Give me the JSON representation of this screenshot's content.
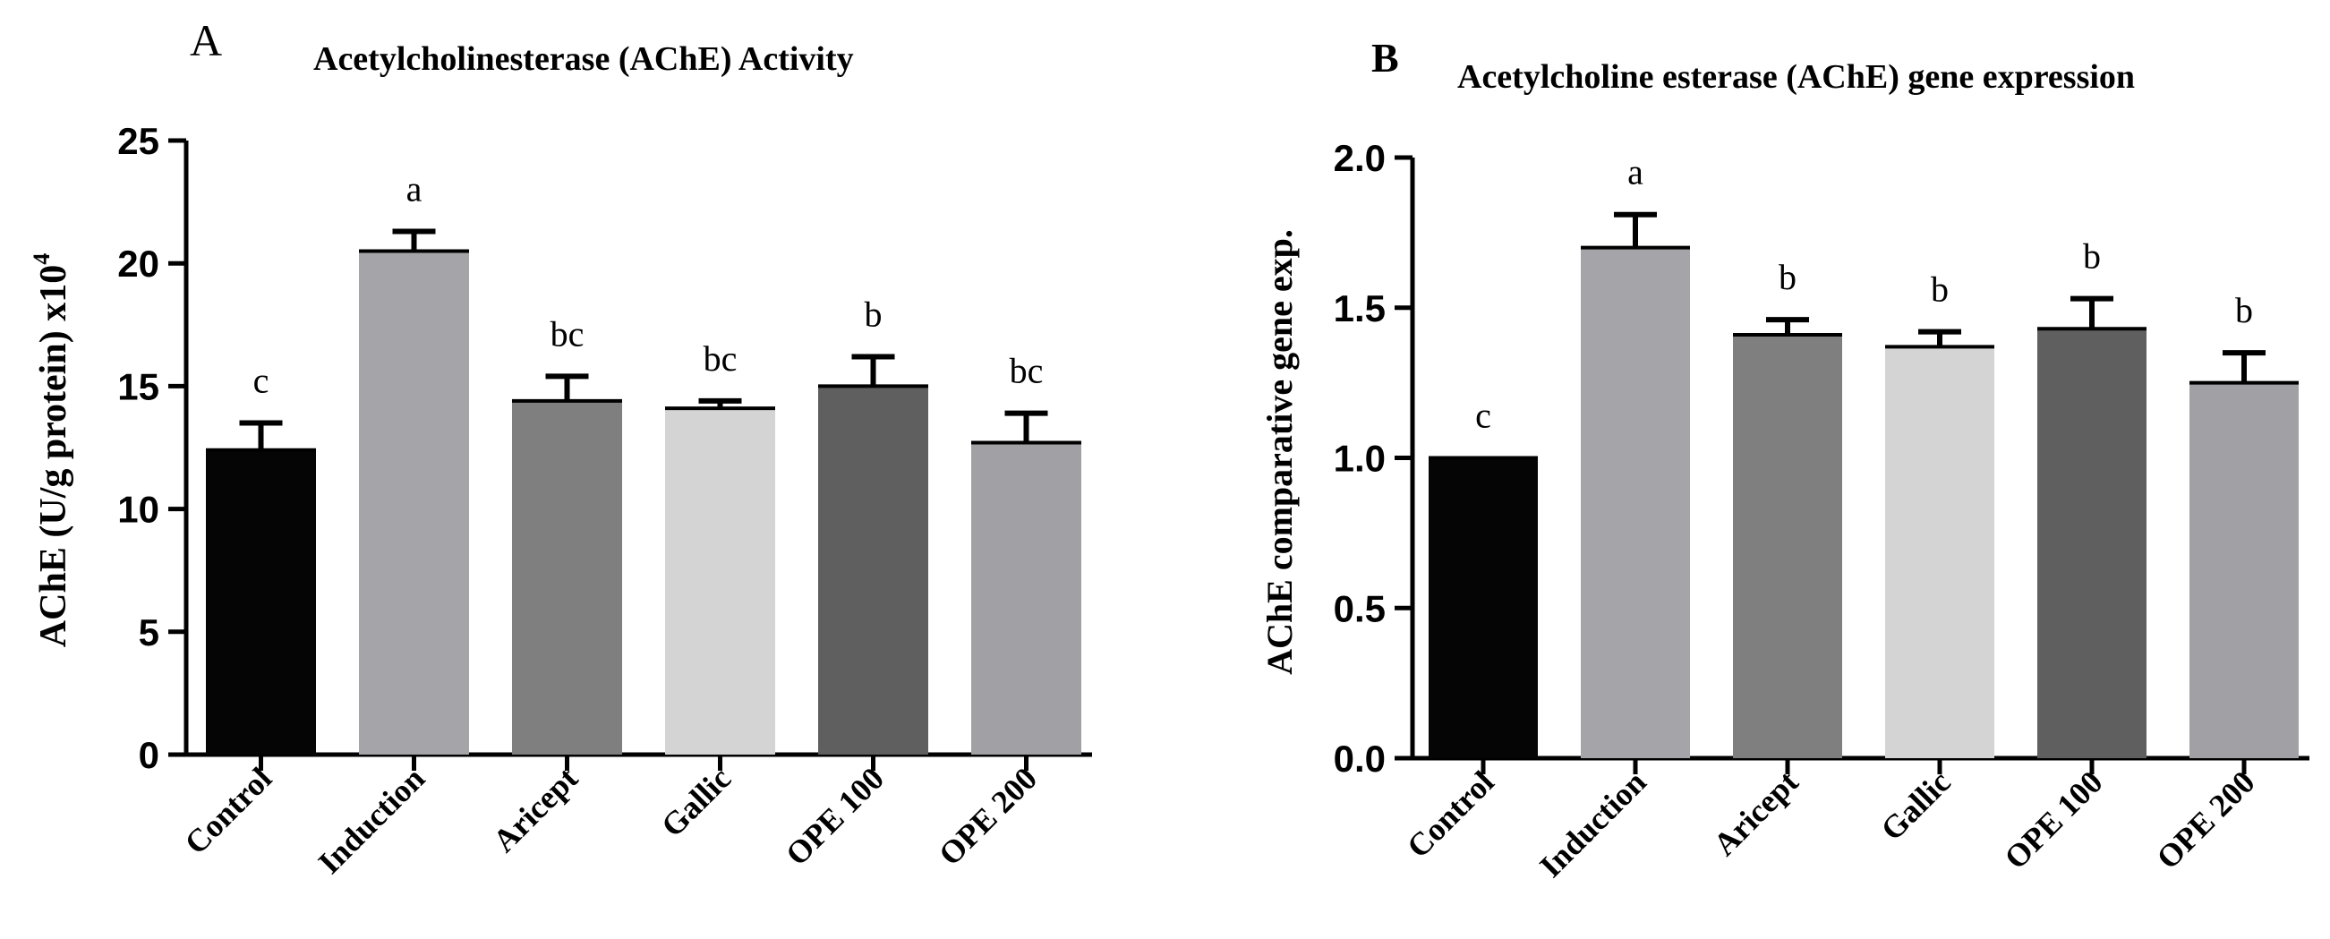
{
  "chart_data": [
    {
      "type": "bar",
      "panel_letter": "A",
      "title": "Acetylcholinesterase (AChE) Activity",
      "ylabel": "AChE (U/g protein) x10",
      "ylabel_superscript": "4",
      "xlabel": "",
      "ylim": [
        0,
        25
      ],
      "yticks": [
        0,
        5,
        10,
        15,
        20,
        25
      ],
      "categories": [
        "Control",
        "Induction",
        "Aricept",
        "Gallic",
        "OPE 100",
        "OPE 200"
      ],
      "values": [
        12.4,
        20.5,
        14.4,
        14.1,
        15.0,
        12.7
      ],
      "errors": [
        1.1,
        0.8,
        1.0,
        0.3,
        1.2,
        1.2
      ],
      "letters": [
        "c",
        "a",
        "bc",
        "bc",
        "b",
        "bc"
      ],
      "colors": [
        "#050505",
        "#a5a5a9",
        "#7f7f7f",
        "#d4d4d4",
        "#5f5f5f",
        "#a1a1a5"
      ]
    },
    {
      "type": "bar",
      "panel_letter": "B",
      "title": "Acetylcholine esterase (AChE) gene expression",
      "ylabel": "AChE comparative gene exp.",
      "ylabel_superscript": "",
      "xlabel": "",
      "ylim": [
        0,
        2.0
      ],
      "yticks": [
        "0.0",
        "0.5",
        "1.0",
        "1.5",
        "2.0"
      ],
      "categories": [
        "Control",
        "Induction",
        "Aricept",
        "Gallic",
        "OPE 100",
        "OPE 200"
      ],
      "values": [
        1.0,
        1.7,
        1.41,
        1.37,
        1.43,
        1.25
      ],
      "errors": [
        0.0,
        0.11,
        0.05,
        0.05,
        0.1,
        0.1
      ],
      "letters": [
        "c",
        "a",
        "b",
        "b",
        "b",
        "b"
      ],
      "colors": [
        "#050505",
        "#a5a5a9",
        "#7f7f7f",
        "#d4d4d4",
        "#5f5f5f",
        "#a1a1a5"
      ]
    }
  ]
}
